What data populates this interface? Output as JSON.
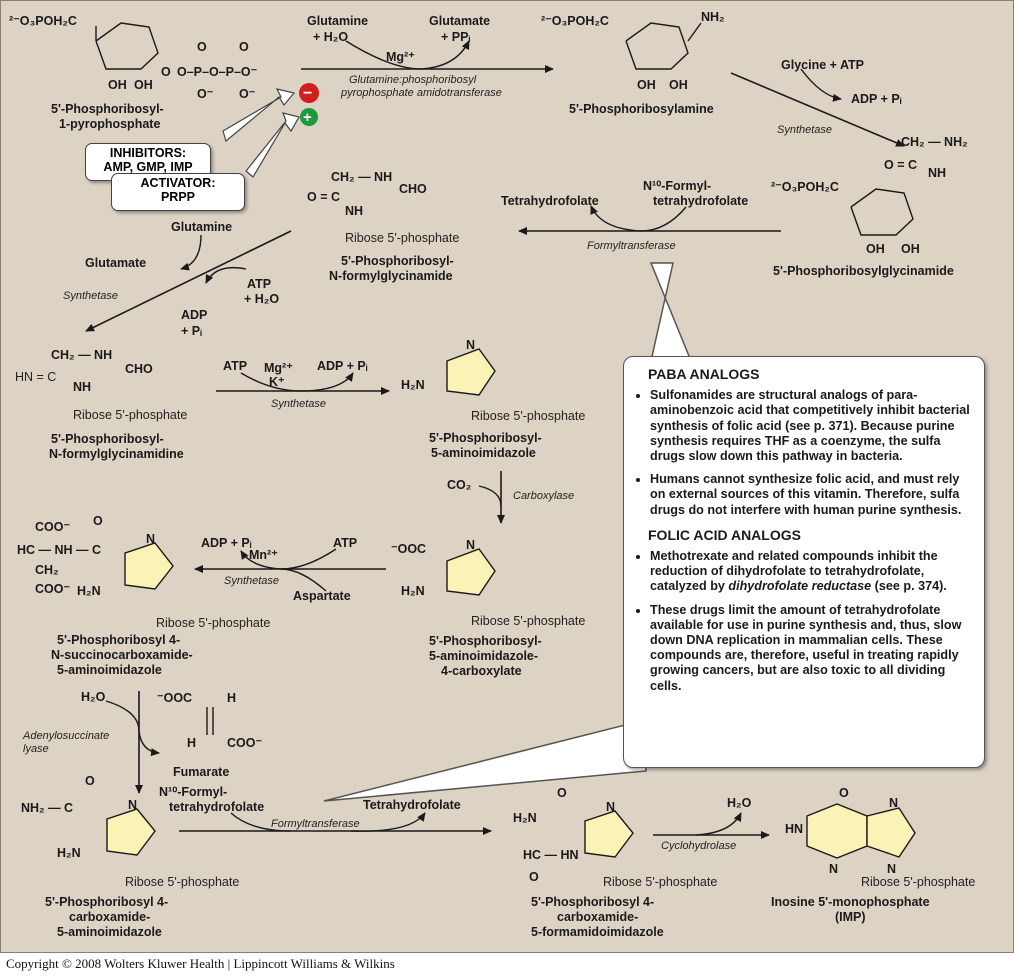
{
  "molecules": {
    "prpp": {
      "name1": "5'-Phosphoribosyl-",
      "name2": "1-pyrophosphate",
      "group": "²⁻O₃POH₂C",
      "pp": "O–P–O–P–O⁻",
      "oh": "OH",
      "oh2": "OH"
    },
    "pra": {
      "name": "5'-Phosphoribosylamine",
      "group": "²⁻O₃POH₂C",
      "nh2": "NH₂"
    },
    "gar": {
      "name": "5'-Phosphoribosylglycinamide",
      "group": "²⁻O₃POH₂C",
      "ch2": "CH₂ — NH₂",
      "oc": "O = C",
      "nh": "NH"
    },
    "fgar": {
      "name1": "5'-Phosphoribosyl-",
      "name2": "N-formylglycinamide",
      "top": "CH₂ — NH",
      "cho": "CHO",
      "oc": "O = C",
      "nh": "NH",
      "ribose": "Ribose 5'-phosphate"
    },
    "fgam": {
      "name1": "5'-Phosphoribosyl-",
      "name2": "N-formylglycinamidine",
      "top": "CH₂ — NH",
      "cho": "CHO",
      "hn": "HN = C",
      "nh": "NH",
      "ribose": "Ribose 5'-phosphate"
    },
    "air": {
      "name1": "5'-Phosphoribosyl-",
      "name2": "5-aminoimidazole",
      "h2n": "H₂N",
      "n": "N",
      "ribose": "Ribose 5'-phosphate"
    },
    "cair": {
      "name1": "5'-Phosphoribosyl-",
      "name2": "5-aminoimidazole-",
      "name3": "4-carboxylate",
      "coo": "⁻OOC",
      "h2n": "H₂N",
      "ribose": "Ribose 5'-phosphate"
    },
    "saicar": {
      "name1": "5'-Phosphoribosyl 4-",
      "name2": "N-succinocarboxamide-",
      "name3": "5-aminoimidazole",
      "coo1": "COO⁻",
      "ch": "HC — NH — C",
      "o": "O",
      "ch2": "CH₂",
      "coo2": "COO⁻",
      "h2n": "H₂N",
      "ribose": "Ribose 5'-phosphate"
    },
    "aicar": {
      "name1": "5'-Phosphoribosyl 4-",
      "name2": "carboxamide-",
      "name3": "5-aminoimidazole",
      "nh2c": "NH₂ — C",
      "h2n": "H₂N",
      "ribose": "Ribose 5'-phosphate"
    },
    "faicar": {
      "name1": "5'-Phosphoribosyl 4-",
      "name2": "carboxamide-",
      "name3": "5-formamidoimidazole",
      "h2n": "H₂N",
      "hc": "HC — HN",
      "ribose": "Ribose 5'-phosphate"
    },
    "imp": {
      "name1": "Inosine 5'-monophosphate",
      "name2": "(IMP)",
      "hn": "HN",
      "ribose": "Ribose 5'-phosphate"
    },
    "fumarate": {
      "name": "Fumarate",
      "coo1": "⁻OOC",
      "h1": "H",
      "h2": "H",
      "coo2": "COO⁻"
    }
  },
  "reactions": {
    "r1": {
      "in1": "Glutamine",
      "in2": "+ H₂O",
      "out1": "Glutamate",
      "out2": "+ PPᵢ",
      "cofactor": "Mg²⁺",
      "enzyme1": "Glutamine:phosphoribosyl",
      "enzyme2": "pyrophosphate amidotransferase"
    },
    "r2": {
      "in": "Glycine + ATP",
      "out": "ADP + Pᵢ",
      "enzyme": "Synthetase"
    },
    "r3": {
      "in1": "N¹⁰-Formyl-",
      "in2": "tetrahydrofolate",
      "out": "Tetrahydrofolate",
      "enzyme": "Formyltransferase"
    },
    "r4": {
      "in1": "Glutamine",
      "in2": "ATP",
      "in3": "+ H₂O",
      "out1": "Glutamate",
      "out2": "ADP",
      "out3": "+ Pᵢ",
      "enzyme": "Synthetase"
    },
    "r5": {
      "in": "ATP",
      "cof1": "Mg²⁺",
      "cof2": "K⁺",
      "out": "ADP + Pᵢ",
      "enzyme": "Synthetase"
    },
    "r6": {
      "in": "CO₂",
      "enzyme": "Carboxylase"
    },
    "r7": {
      "in1": "ATP",
      "in2": "Aspartate",
      "cof": "Mn²⁺",
      "out": "ADP + Pᵢ",
      "enzyme": "Synthetase"
    },
    "r8": {
      "in": "H₂O",
      "enzyme1": "Adenylosuccinate",
      "enzyme2": "lyase"
    },
    "r9": {
      "in1": "N¹⁰-Formyl-",
      "in2": "tetrahydrofolate",
      "out": "Tetrahydrofolate",
      "enzyme": "Formyltransferase"
    },
    "r10": {
      "out": "H₂O",
      "enzyme": "Cyclohydrolase"
    }
  },
  "regulation": {
    "inhibitors_line1": "INHIBITORS:",
    "inhibitors_line2": "AMP, GMP, IMP",
    "activator_line1": "ACTIVATOR:",
    "activator_line2": "PRPP",
    "minus": "−",
    "plus": "+"
  },
  "callout": {
    "heading1": "PABA ANALOGS",
    "bullets1": [
      "Sulfonamides are structural analogs of para-aminobenzoic acid that competitively inhibit bacterial synthesis of folic acid (see p. 371).  Because purine synthesis requires THF as a coenzyme, the sulfa drugs slow down this pathway in bacteria.",
      "Humans cannot synthesize folic acid, and must rely on external sources of this vitamin.  Therefore, sulfa drugs do not interfere with human purine synthesis."
    ],
    "heading2": "FOLIC ACID ANALOGS",
    "bullet2a_pre": "Methotrexate and related compounds inhibit the reduction of dihydrofolate to tetrahydrofolate, catalyzed by ",
    "bullet2a_em": "dihydrofolate reductase",
    "bullet2a_post": " (see p. 374).",
    "bullet2b": "These drugs limit the amount of tetrahydrofolate available for use in purine synthesis and, thus, slow down DNA replication in mammalian cells.  These compounds are, therefore, useful in treating rapidly growing cancers, but are also toxic to all dividing cells."
  },
  "copyright": "Copyright © 2008 Wolters Kluwer Health | Lippincott Williams & Wilkins",
  "colors": {
    "background": "#ddd3c5",
    "ring_fill": "#fbf2b5",
    "inhibitor": "#d0201e",
    "activator": "#1e9a3c"
  }
}
